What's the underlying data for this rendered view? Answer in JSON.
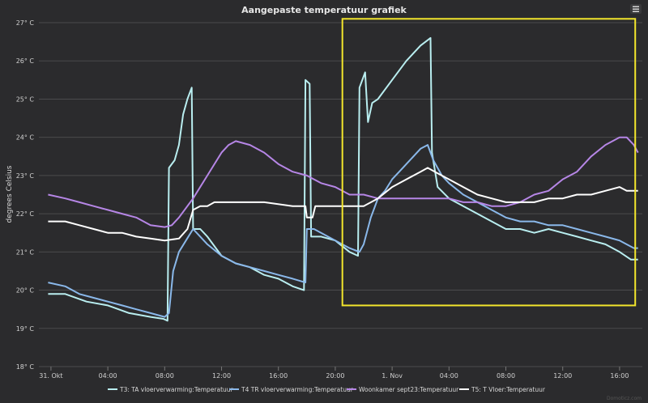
{
  "chart_data": {
    "type": "line",
    "title": "Aangepaste temperatuur grafiek",
    "xlabel": "",
    "ylabel": "degrees Celsius",
    "ylim": [
      18,
      27
    ],
    "y_ticks": [
      "18° C",
      "19° C",
      "20° C",
      "21° C",
      "22° C",
      "23° C",
      "24° C",
      "25° C",
      "26° C",
      "27° C"
    ],
    "x_range": [
      -0.85,
      41.6
    ],
    "x_ticks": [
      {
        "label": "31. Okt",
        "x": 0
      },
      {
        "label": "04:00",
        "x": 4
      },
      {
        "label": "08:00",
        "x": 8
      },
      {
        "label": "12:00",
        "x": 12
      },
      {
        "label": "16:00",
        "x": 16
      },
      {
        "label": "20:00",
        "x": 20
      },
      {
        "label": "1. Nov",
        "x": 24
      },
      {
        "label": "04:00",
        "x": 28
      },
      {
        "label": "08:00",
        "x": 32
      },
      {
        "label": "12:00",
        "x": 36
      },
      {
        "label": "16:00",
        "x": 40
      }
    ],
    "grid": true,
    "legend_position": "bottom",
    "highlight_box": {
      "x0": 20.5,
      "x1": 41.1,
      "y0": 19.6,
      "y1": 27.1,
      "color": "#f3e62c"
    },
    "series": [
      {
        "name": "T3: TA vloerverwarming:Temperatuur",
        "color": "#b9eef0",
        "points": [
          [
            -0.2,
            19.9
          ],
          [
            1,
            19.9
          ],
          [
            2.5,
            19.7
          ],
          [
            4,
            19.6
          ],
          [
            5.5,
            19.4
          ],
          [
            7,
            19.3
          ],
          [
            7.9,
            19.25
          ],
          [
            8.2,
            19.2
          ],
          [
            8.3,
            23.2
          ],
          [
            8.7,
            23.4
          ],
          [
            9.0,
            23.8
          ],
          [
            9.3,
            24.6
          ],
          [
            9.6,
            25.0
          ],
          [
            9.9,
            25.3
          ],
          [
            10.0,
            21.6
          ],
          [
            10.5,
            21.6
          ],
          [
            11,
            21.4
          ],
          [
            12,
            20.9
          ],
          [
            13,
            20.7
          ],
          [
            14,
            20.6
          ],
          [
            15,
            20.4
          ],
          [
            16,
            20.3
          ],
          [
            17,
            20.1
          ],
          [
            17.8,
            20.0
          ],
          [
            17.9,
            25.5
          ],
          [
            18.2,
            25.4
          ],
          [
            18.3,
            21.4
          ],
          [
            19,
            21.4
          ],
          [
            20,
            21.3
          ],
          [
            21,
            21.0
          ],
          [
            21.6,
            20.9
          ],
          [
            21.7,
            25.3
          ],
          [
            22.1,
            25.7
          ],
          [
            22.3,
            24.4
          ],
          [
            22.6,
            24.9
          ],
          [
            23,
            25.0
          ],
          [
            24,
            25.5
          ],
          [
            25,
            26.0
          ],
          [
            26,
            26.4
          ],
          [
            26.7,
            26.6
          ],
          [
            26.8,
            23.6
          ],
          [
            27.2,
            22.7
          ],
          [
            28,
            22.4
          ],
          [
            29,
            22.2
          ],
          [
            30,
            22.0
          ],
          [
            31,
            21.8
          ],
          [
            32,
            21.6
          ],
          [
            33,
            21.6
          ],
          [
            34,
            21.5
          ],
          [
            35,
            21.6
          ],
          [
            36,
            21.5
          ],
          [
            37,
            21.4
          ],
          [
            38,
            21.3
          ],
          [
            39,
            21.2
          ],
          [
            40,
            21.0
          ],
          [
            40.8,
            20.8
          ],
          [
            41.3,
            20.8
          ]
        ]
      },
      {
        "name": "T4 TR vloerverwarming:Temperatuur",
        "color": "#8ab8ea",
        "points": [
          [
            -0.2,
            20.2
          ],
          [
            1,
            20.1
          ],
          [
            2,
            19.9
          ],
          [
            3,
            19.8
          ],
          [
            4,
            19.7
          ],
          [
            5,
            19.6
          ],
          [
            6,
            19.5
          ],
          [
            7,
            19.4
          ],
          [
            8,
            19.3
          ],
          [
            8.3,
            19.4
          ],
          [
            8.6,
            20.5
          ],
          [
            9,
            21.0
          ],
          [
            9.5,
            21.3
          ],
          [
            10,
            21.6
          ],
          [
            10.5,
            21.4
          ],
          [
            11,
            21.2
          ],
          [
            12,
            20.9
          ],
          [
            13,
            20.7
          ],
          [
            14,
            20.6
          ],
          [
            15,
            20.5
          ],
          [
            16,
            20.4
          ],
          [
            17,
            20.3
          ],
          [
            17.9,
            20.2
          ],
          [
            18,
            21.6
          ],
          [
            18.5,
            21.6
          ],
          [
            19,
            21.5
          ],
          [
            20,
            21.3
          ],
          [
            21,
            21.1
          ],
          [
            21.7,
            21.0
          ],
          [
            22.0,
            21.2
          ],
          [
            22.5,
            21.9
          ],
          [
            23,
            22.4
          ],
          [
            23.5,
            22.6
          ],
          [
            24,
            22.9
          ],
          [
            24.5,
            23.1
          ],
          [
            25,
            23.3
          ],
          [
            25.5,
            23.5
          ],
          [
            26,
            23.7
          ],
          [
            26.5,
            23.8
          ],
          [
            26.9,
            23.4
          ],
          [
            27.5,
            23.0
          ],
          [
            28,
            22.8
          ],
          [
            29,
            22.5
          ],
          [
            30,
            22.3
          ],
          [
            31,
            22.1
          ],
          [
            32,
            21.9
          ],
          [
            33,
            21.8
          ],
          [
            34,
            21.8
          ],
          [
            35,
            21.7
          ],
          [
            36,
            21.7
          ],
          [
            37,
            21.6
          ],
          [
            38,
            21.5
          ],
          [
            39,
            21.4
          ],
          [
            40,
            21.3
          ],
          [
            41,
            21.1
          ],
          [
            41.3,
            21.1
          ]
        ]
      },
      {
        "name": "Woonkamer sept23:Temperatuur",
        "color": "#b686e6",
        "points": [
          [
            -0.2,
            22.5
          ],
          [
            1,
            22.4
          ],
          [
            2,
            22.3
          ],
          [
            3,
            22.2
          ],
          [
            4,
            22.1
          ],
          [
            5,
            22.0
          ],
          [
            6,
            21.9
          ],
          [
            7,
            21.7
          ],
          [
            8,
            21.65
          ],
          [
            8.5,
            21.7
          ],
          [
            9,
            21.9
          ],
          [
            10,
            22.4
          ],
          [
            11,
            23.0
          ],
          [
            12,
            23.6
          ],
          [
            12.5,
            23.8
          ],
          [
            13,
            23.9
          ],
          [
            14,
            23.8
          ],
          [
            15,
            23.6
          ],
          [
            16,
            23.3
          ],
          [
            17,
            23.1
          ],
          [
            18,
            23.0
          ],
          [
            19,
            22.8
          ],
          [
            20,
            22.7
          ],
          [
            21,
            22.5
          ],
          [
            22,
            22.5
          ],
          [
            23,
            22.4
          ],
          [
            24,
            22.4
          ],
          [
            25,
            22.4
          ],
          [
            26,
            22.4
          ],
          [
            27,
            22.4
          ],
          [
            28,
            22.4
          ],
          [
            29,
            22.3
          ],
          [
            30,
            22.3
          ],
          [
            31,
            22.2
          ],
          [
            32,
            22.2
          ],
          [
            33,
            22.3
          ],
          [
            34,
            22.5
          ],
          [
            35,
            22.6
          ],
          [
            36,
            22.9
          ],
          [
            37,
            23.1
          ],
          [
            38,
            23.5
          ],
          [
            39,
            23.8
          ],
          [
            40,
            24.0
          ],
          [
            40.5,
            24.0
          ],
          [
            41,
            23.8
          ],
          [
            41.3,
            23.6
          ]
        ]
      },
      {
        "name": "T5: T Vloer:Temperatuur",
        "color": "#ffffff",
        "points": [
          [
            -0.2,
            21.8
          ],
          [
            1,
            21.8
          ],
          [
            2,
            21.7
          ],
          [
            3,
            21.6
          ],
          [
            4,
            21.5
          ],
          [
            5,
            21.5
          ],
          [
            6,
            21.4
          ],
          [
            7,
            21.35
          ],
          [
            8,
            21.3
          ],
          [
            9,
            21.35
          ],
          [
            9.6,
            21.6
          ],
          [
            10,
            22.1
          ],
          [
            10.5,
            22.2
          ],
          [
            11,
            22.2
          ],
          [
            11.5,
            22.3
          ],
          [
            13,
            22.3
          ],
          [
            15,
            22.3
          ],
          [
            17,
            22.2
          ],
          [
            17.9,
            22.2
          ],
          [
            18.0,
            21.9
          ],
          [
            18.4,
            21.9
          ],
          [
            18.6,
            22.2
          ],
          [
            20,
            22.2
          ],
          [
            21,
            22.2
          ],
          [
            22,
            22.2
          ],
          [
            23,
            22.4
          ],
          [
            24,
            22.7
          ],
          [
            25,
            22.9
          ],
          [
            26,
            23.1
          ],
          [
            26.5,
            23.2
          ],
          [
            27,
            23.1
          ],
          [
            28,
            22.9
          ],
          [
            29,
            22.7
          ],
          [
            30,
            22.5
          ],
          [
            31,
            22.4
          ],
          [
            32,
            22.3
          ],
          [
            33,
            22.3
          ],
          [
            34,
            22.3
          ],
          [
            35,
            22.4
          ],
          [
            36,
            22.4
          ],
          [
            37,
            22.5
          ],
          [
            38,
            22.5
          ],
          [
            39,
            22.6
          ],
          [
            40,
            22.7
          ],
          [
            40.5,
            22.6
          ],
          [
            41.3,
            22.6
          ]
        ]
      }
    ],
    "credits": "Domoticz.com"
  }
}
